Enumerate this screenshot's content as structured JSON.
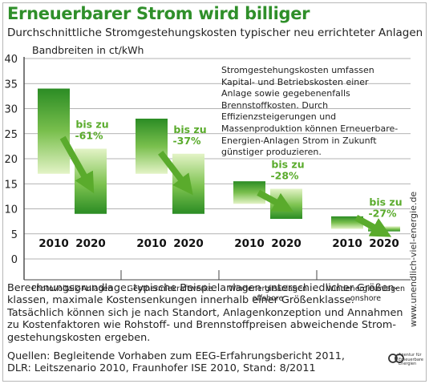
{
  "header": {
    "title": "Erneuerbarer Strom wird billiger",
    "subtitle": "Durchschnittliche Stromgestehungskosten typischer neu errichteter Anlagen",
    "unit": "Bandbreiten in ct/kWh"
  },
  "note": "Stromgestehungskosten umfassen Kapital- und Betriebskosten einer Anlage sowie gegebenenfalls Brennstoffkosten. Durch Effizienzsteigerungen und Massenproduktion können Erneuerbare-Energien-Anlagen Strom in Zukunft günstiger produzieren.",
  "basis": "Berechnungsgrundlage: typische Beispielanlagen unterschiedlicher Größen-klassen, maximale Kostensenkungen innerhalb einer Größenklasse. Tatsächlich können sich je nach Standort, Anlagenkonzeption und Annahmen zu Kostenfaktoren wie Rohstoff- und Brennstoffpreisen abweichende Strom-gestehungskosten ergeben.",
  "sources": "Quellen: Begleitende Vorhaben zum EEG-Erfahrungsbericht 2011, DLR: Leitszenario 2010, Fraunhofer ISE 2010, Stand: 8/2011",
  "side_url": "www.unendlich-viel-energie.de",
  "logo_text": "Agentur für Erneuerbare Energien",
  "colors": {
    "bar_dark": "#2b8c24",
    "bar_light": "#dff0c0",
    "title": "#2f8f2a",
    "arrow": "#5aab2c",
    "reduction_text": "#5aab2c"
  },
  "chart_data": {
    "type": "bar",
    "subtype": "floating-range",
    "ylabel": "Bandbreiten in ct/kWh",
    "ylim": [
      0,
      40
    ],
    "yticks": [
      0,
      5,
      10,
      15,
      20,
      25,
      30,
      35,
      40
    ],
    "grid": true,
    "groups": [
      {
        "label": "Photovoltaik-Anlagen",
        "bars": [
          {
            "year": "2010",
            "low": 17,
            "high": 34
          },
          {
            "year": "2020",
            "low": 9,
            "high": 22
          }
        ],
        "reduction": [
          "bis zu",
          "-61%"
        ]
      },
      {
        "label": "Geothermiekraftwerke",
        "bars": [
          {
            "year": "2010",
            "low": 17,
            "high": 28
          },
          {
            "year": "2020",
            "low": 9,
            "high": 21
          }
        ],
        "reduction": [
          "bis zu",
          "-37%"
        ]
      },
      {
        "label": "Windenergieanlagen offshore",
        "label_lines": [
          "Windenergieanlagen",
          "offshore"
        ],
        "bars": [
          {
            "year": "2010",
            "low": 11,
            "high": 15.5
          },
          {
            "year": "2020",
            "low": 8,
            "high": 14
          }
        ],
        "reduction": [
          "bis zu",
          "-28%"
        ]
      },
      {
        "label": "Windenergieanlagen onshore",
        "label_lines": [
          "Windenergieanlagen",
          "onshore"
        ],
        "bars": [
          {
            "year": "2010",
            "low": 6,
            "high": 8.5
          },
          {
            "year": "2020",
            "low": 5.5,
            "high": 6.5
          }
        ],
        "reduction": [
          "bis zu",
          "-27%"
        ]
      }
    ]
  }
}
